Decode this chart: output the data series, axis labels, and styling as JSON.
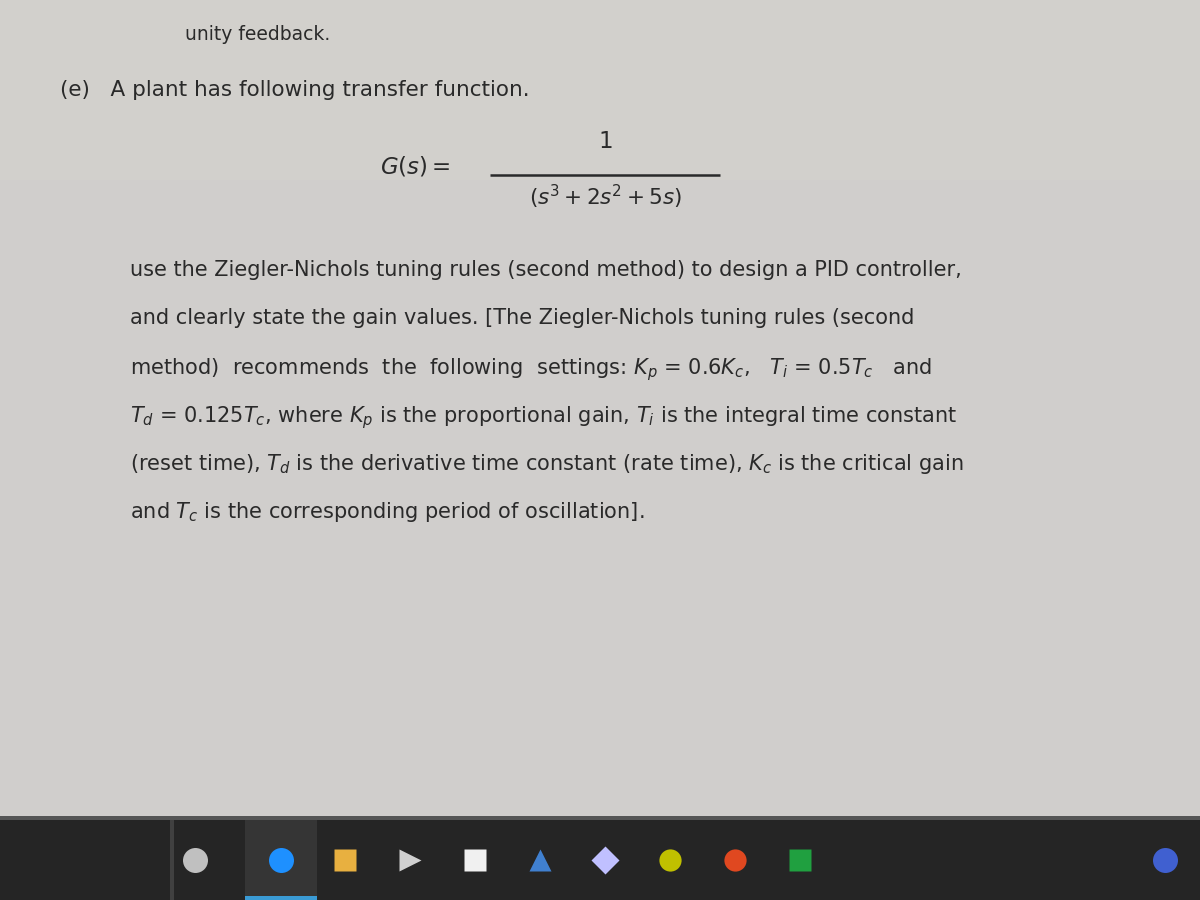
{
  "bg_outer_color": "#a0a0a0",
  "bg_paper_color": "#d8d8d8",
  "taskbar_color": "#2a2a2a",
  "taskbar_border_color": "#3a3a3a",
  "text_color": "#2a2a2a",
  "unity_text": "unity feedback.",
  "line1": "(e)   A plant has following transfer function.",
  "font_size": 14.5,
  "unity_fontsize": 13.5,
  "line1_fontsize": 15.5
}
